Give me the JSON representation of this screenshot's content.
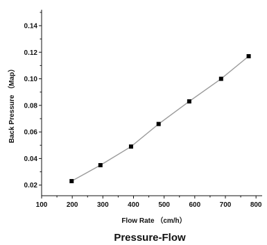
{
  "chart_data": {
    "type": "line",
    "title": "",
    "caption": "Pressure-Flow",
    "xlabel": "Flow Rate （cm/h）",
    "ylabel": "Back Pressure （Map）",
    "xlim": [
      100,
      820
    ],
    "ylim": [
      0.012,
      0.152
    ],
    "xticks": [
      "100",
      "200",
      "300",
      "400",
      "500",
      "600",
      "700",
      "800"
    ],
    "yticks": [
      "0.02",
      "0.04",
      "0.06",
      "0.08",
      "0.10",
      "0.12",
      "0.14"
    ],
    "grid": false,
    "series": [
      {
        "x": [
          198,
          292,
          392,
          482,
          582,
          686,
          776
        ],
        "y": [
          0.023,
          0.035,
          0.049,
          0.066,
          0.083,
          0.1,
          0.117
        ]
      }
    ],
    "colors": {
      "line": "#9a9a9a",
      "marker": "#000000",
      "axis": "#111111"
    }
  }
}
